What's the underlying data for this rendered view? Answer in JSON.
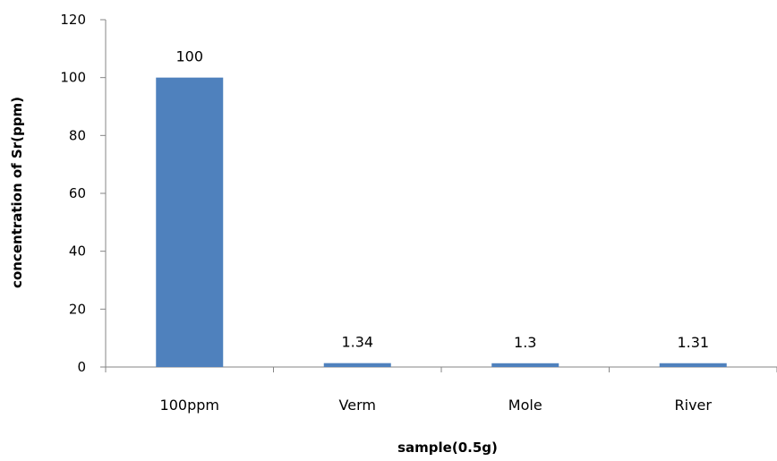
{
  "chart_data": {
    "type": "bar",
    "categories": [
      "100ppm",
      "Verm",
      "Mole",
      "River"
    ],
    "values": [
      100,
      1.34,
      1.3,
      1.31
    ],
    "data_labels": [
      "100",
      "1.34",
      "1.3",
      "1.31"
    ],
    "title": "",
    "xlabel": "sample(0.5g)",
    "ylabel": "concentration of Sr(ppm)",
    "ylim": [
      0,
      120
    ],
    "yticks": [
      "0",
      "20",
      "40",
      "60",
      "80",
      "100",
      "120"
    ],
    "grid": false,
    "legend": "none",
    "bar_color": "#4f81bd",
    "axis_color": "#868686"
  }
}
